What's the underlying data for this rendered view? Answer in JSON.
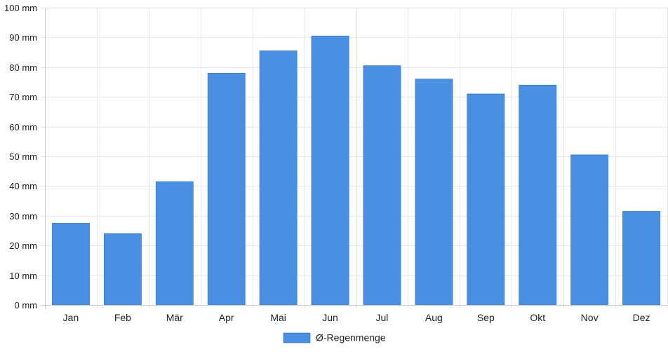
{
  "colors": {
    "bar": "#4a90e2",
    "bar_border": "#2e6fc0",
    "grid": "#e6e6e6",
    "axis": "#c8c8c8",
    "text": "#222222"
  },
  "chart_data": {
    "type": "bar",
    "title": "",
    "xlabel": "",
    "ylabel": "",
    "unit": "mm",
    "ylim": [
      0,
      100
    ],
    "ytick_step": 10,
    "y_tick_labels": [
      "0 mm",
      "10 mm",
      "20 mm",
      "30 mm",
      "40 mm",
      "50 mm",
      "60 mm",
      "70 mm",
      "80 mm",
      "90 mm",
      "100 mm"
    ],
    "categories": [
      "Jan",
      "Feb",
      "Mär",
      "Apr",
      "Mai",
      "Jun",
      "Jul",
      "Aug",
      "Sep",
      "Okt",
      "Nov",
      "Dez"
    ],
    "series": [
      {
        "name": "Ø-Regenmenge",
        "values": [
          27.5,
          24,
          41.5,
          78,
          85.5,
          90.5,
          80.5,
          76,
          71,
          74,
          50.5,
          31.5
        ]
      }
    ],
    "grid": true,
    "legend_position": "bottom"
  }
}
